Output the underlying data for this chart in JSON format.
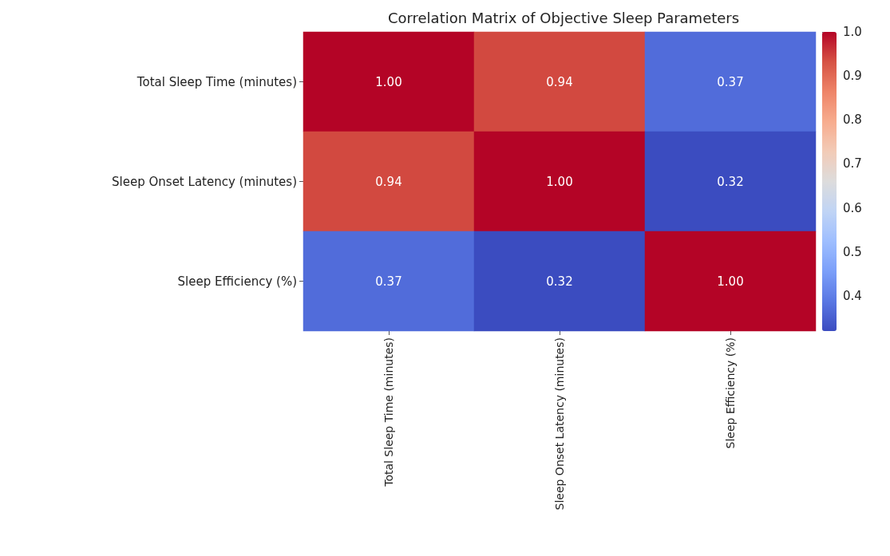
{
  "chart_data": {
    "type": "heatmap",
    "title": "Correlation Matrix of Objective Sleep Parameters",
    "categories": [
      "Total Sleep Time (minutes)",
      "Sleep Onset Latency (minutes)",
      "Sleep Efficiency (%)"
    ],
    "y_categories": [
      "Total Sleep Time (minutes)",
      "Sleep Onset Latency (minutes)",
      "Sleep Efficiency (%)"
    ],
    "cells": [
      [
        1.0,
        0.94,
        0.37
      ],
      [
        0.94,
        1.0,
        0.32
      ],
      [
        0.37,
        0.32,
        1.0
      ]
    ],
    "cell_labels": [
      [
        "1.00",
        "0.94",
        "0.37"
      ],
      [
        "0.94",
        "1.00",
        "0.32"
      ],
      [
        "0.37",
        "0.32",
        "1.00"
      ]
    ],
    "clim": [
      0.32,
      1.0
    ],
    "cticks": [
      0.4,
      0.5,
      0.6,
      0.7,
      0.8,
      0.9,
      {
        "value": 1.0,
        "label": "1.0"
      }
    ]
  }
}
